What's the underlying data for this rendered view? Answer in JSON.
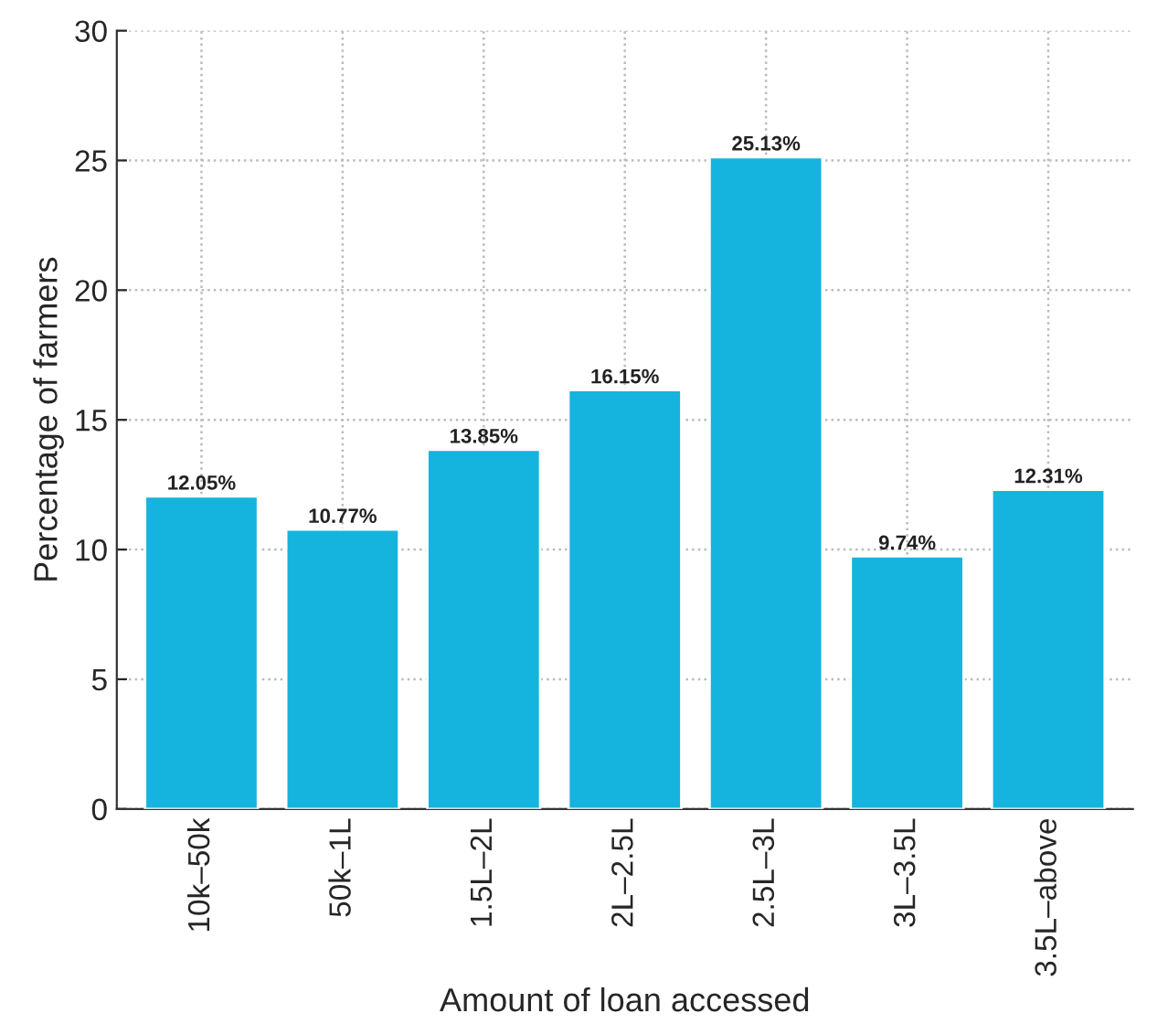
{
  "chart_data": {
    "type": "bar",
    "xlabel": "Amount of loan accessed",
    "ylabel": "Percentage of farmers",
    "categories": [
      "10k–50k",
      "50k–1L",
      "1.5L–2L",
      "2L–2.5L",
      "2.5L–3L",
      "3L–3.5L",
      "3.5L–above"
    ],
    "values": [
      12.05,
      10.77,
      13.85,
      16.15,
      25.13,
      9.74,
      12.31
    ],
    "value_labels": [
      "12.05%",
      "10.77%",
      "13.85%",
      "16.15%",
      "25.13%",
      "9.74%",
      "12.31%"
    ],
    "color": "#14b4de",
    "ylim": [
      0,
      30
    ],
    "yticks": [
      0,
      5,
      10,
      15,
      20,
      25,
      30
    ],
    "grid": true
  }
}
